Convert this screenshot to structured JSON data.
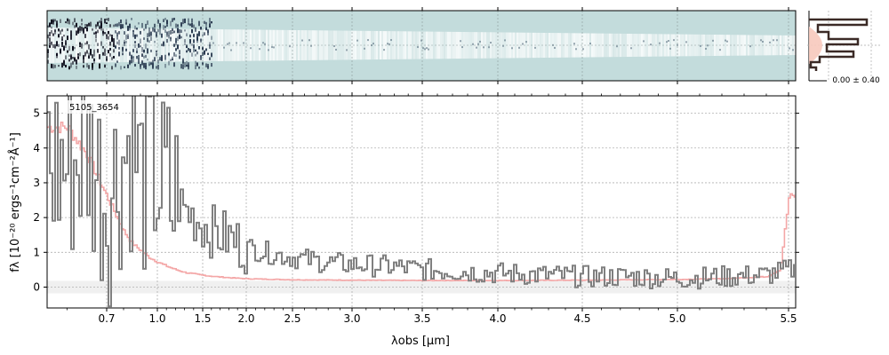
{
  "colors": {
    "spectrum": "#808080",
    "model": "#f4a7a7",
    "model_dark": "#b85a5a",
    "panel_bg": "#c3dcdc",
    "hist": "#3b2a26",
    "hist_fill": "#f7c9bd"
  },
  "chart_data": [
    {
      "type": "line",
      "panel": "1D spectrum",
      "id_label": "5105_3654",
      "xlabel": "λobs [μm]",
      "ylabel": "fλ [10⁻²⁰ ergs⁻¹cm⁻²Å⁻¹]",
      "x_scale": "nonlinear (wavelength)",
      "xlim": [
        0.55,
        5.52
      ],
      "ylim": [
        -0.6,
        5.5
      ],
      "x_ticks": [
        "0.7",
        "1.0",
        "1.5",
        "2.0",
        "2.5",
        "3.0",
        "3.5",
        "4.0",
        "4.5",
        "5.0",
        "5.5"
      ],
      "x_tick_values": [
        0.7,
        1.0,
        1.5,
        2.0,
        2.5,
        3.0,
        3.5,
        4.0,
        4.5,
        5.0,
        5.5
      ],
      "y_ticks": [
        "0",
        "1",
        "2",
        "3",
        "4",
        "5"
      ],
      "y_tick_values": [
        0,
        1,
        2,
        3,
        4,
        5
      ],
      "grid": true,
      "series": [
        {
          "role": "observed flux",
          "style": "steps",
          "x": [
            0.6,
            0.65,
            0.7,
            0.75,
            0.8,
            0.85,
            0.9,
            0.95,
            1.0,
            1.05,
            1.1,
            1.15,
            1.2,
            1.3,
            1.4,
            1.5,
            1.6,
            1.7,
            1.8,
            1.9,
            2.0,
            2.2,
            2.4,
            2.6,
            2.8,
            3.0,
            3.25,
            3.5,
            3.75,
            4.0,
            4.25,
            4.5,
            4.75,
            5.0,
            5.2,
            5.4,
            5.5
          ],
          "y": [
            3.5,
            4.0,
            2.5,
            3.2,
            3.9,
            4.2,
            3.0,
            3.6,
            3.2,
            2.7,
            2.9,
            2.3,
            2.5,
            2.2,
            2.0,
            1.8,
            1.6,
            1.5,
            1.4,
            1.25,
            1.15,
            1.0,
            0.9,
            0.8,
            0.7,
            0.65,
            0.6,
            0.5,
            0.45,
            0.4,
            0.35,
            0.3,
            0.3,
            0.25,
            0.3,
            0.35,
            0.5
          ]
        },
        {
          "role": "model",
          "style": "steps",
          "x": [
            0.6,
            0.65,
            0.7,
            0.75,
            0.8,
            0.85,
            0.9,
            0.95,
            1.0,
            1.1,
            1.2,
            1.3,
            1.4,
            1.5,
            1.6,
            1.8,
            2.0,
            2.5,
            3.0,
            3.5,
            4.0,
            4.5,
            5.0,
            5.2,
            5.4,
            5.46,
            5.5
          ],
          "y": [
            4.6,
            3.8,
            2.6,
            2.1,
            1.6,
            1.25,
            1.05,
            0.85,
            0.72,
            0.6,
            0.5,
            0.42,
            0.38,
            0.34,
            0.31,
            0.27,
            0.24,
            0.21,
            0.2,
            0.19,
            0.19,
            0.2,
            0.22,
            0.24,
            0.3,
            0.5,
            2.6
          ]
        }
      ]
    },
    {
      "type": "heatmap",
      "panel": "2D spectrum"
    },
    {
      "type": "line",
      "panel": "pixel histogram",
      "annotation": "0.00 ± 0.40"
    }
  ]
}
